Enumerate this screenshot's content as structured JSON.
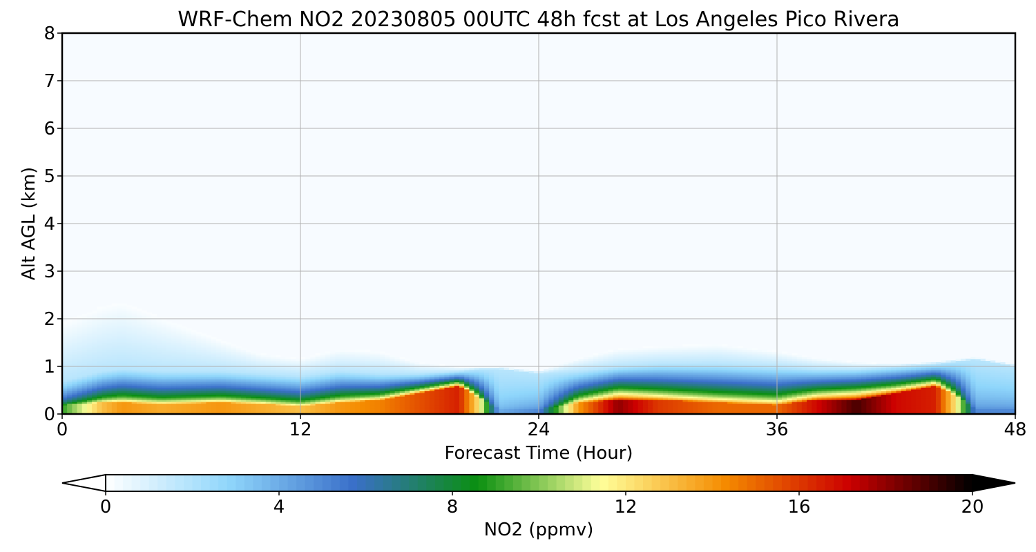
{
  "chart_data": {
    "type": "heatmap",
    "title": "WRF-Chem NO2  20230805 00UTC 48h fcst at Los Angeles Pico Rivera",
    "xlabel": "Forecast Time (Hour)",
    "ylabel": "Alt AGL (km)",
    "xlim": [
      0,
      48
    ],
    "ylim": [
      0,
      8
    ],
    "xticks": [
      "0",
      "12",
      "24",
      "36",
      "48"
    ],
    "yticks": [
      "0",
      "1",
      "2",
      "3",
      "4",
      "5",
      "6",
      "7",
      "8"
    ],
    "grid": true,
    "colorbar": {
      "label": "NO2  (ppmv)",
      "range": [
        0,
        20
      ],
      "ticks": [
        "0",
        "4",
        "8",
        "12",
        "16",
        "20"
      ],
      "extend": "both",
      "colors": [
        "#ffffff",
        "#8fd6fb",
        "#3a6fc9",
        "#0a8f10",
        "#ffff9a",
        "#f58b00",
        "#cc0000",
        "#000000"
      ]
    },
    "surface_layer_profile": {
      "hour": [
        0,
        2,
        3,
        5,
        8,
        10,
        12,
        14,
        16,
        18,
        20,
        21,
        22,
        24,
        26,
        28,
        30,
        33,
        36,
        38,
        40,
        42,
        44,
        45,
        46,
        48
      ],
      "surface_no2_ppmv": [
        9,
        13,
        14,
        13.5,
        14,
        13.5,
        13,
        14,
        14.5,
        15.5,
        16.5,
        12,
        4,
        5,
        14,
        18,
        16,
        15,
        15,
        17,
        19,
        17,
        16.5,
        12,
        5,
        5
      ],
      "polluted_layer_top_km": [
        0.7,
        0.9,
        0.95,
        0.9,
        0.9,
        0.85,
        0.8,
        0.9,
        0.85,
        0.85,
        0.9,
        0.95,
        0.95,
        0.85,
        0.9,
        1.0,
        1.05,
        1.05,
        1.0,
        0.95,
        0.95,
        1.0,
        1.05,
        1.1,
        1.15,
        1.0
      ],
      "haze_top_km": [
        2.0,
        2.35,
        2.45,
        2.1,
        1.6,
        1.3,
        1.2,
        1.4,
        1.35,
        1.1,
        1.0,
        1.0,
        0.95,
        0.9,
        1.2,
        1.4,
        1.45,
        1.5,
        1.35,
        1.2,
        1.1,
        1.05,
        1.05,
        1.1,
        1.15,
        1.0
      ],
      "peak_layer_km": [
        0.2,
        0.25,
        0.25,
        0.22,
        0.25,
        0.22,
        0.18,
        0.25,
        0.3,
        0.45,
        0.6,
        0.35,
        0.1,
        0.1,
        0.25,
        0.3,
        0.3,
        0.25,
        0.2,
        0.3,
        0.3,
        0.45,
        0.6,
        0.4,
        0.1,
        0.1
      ]
    }
  }
}
